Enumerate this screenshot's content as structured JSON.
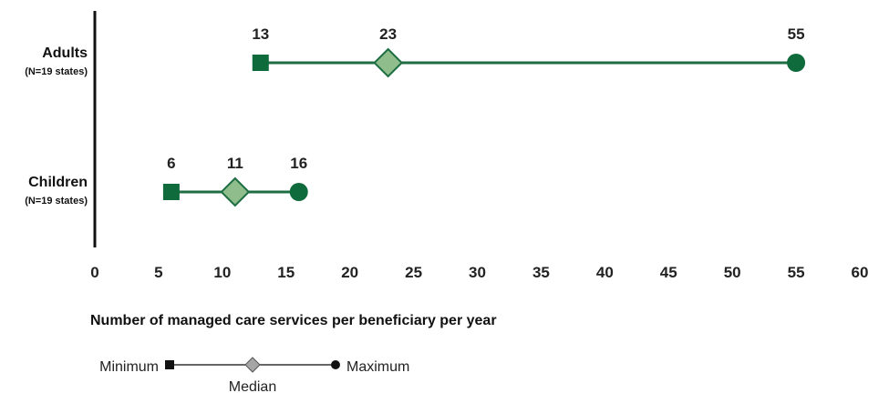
{
  "chart_data": {
    "type": "range",
    "xlabel": "Number of managed care services per beneficiary per year",
    "xlim": [
      0,
      60
    ],
    "xticks": [
      0,
      5,
      10,
      15,
      20,
      25,
      30,
      35,
      40,
      45,
      50,
      55,
      60
    ],
    "grid": false,
    "categories": [
      {
        "name": "Adults",
        "sublabel": "(N=19 states)",
        "min": 13,
        "median": 23,
        "max": 55,
        "min_label": "13",
        "median_label": "23",
        "max_label": "55"
      },
      {
        "name": "Children",
        "sublabel": "(N=19 states)",
        "min": 6,
        "median": 11,
        "max": 16,
        "min_label": "6",
        "median_label": "11",
        "max_label": "16"
      }
    ],
    "legend": {
      "placement": "bottom-left",
      "min_label": "Minimum",
      "median_label": "Median",
      "max_label": "Maximum"
    },
    "colors": {
      "line": "#1f6e43",
      "min_marker": "#0f6b3c",
      "max_marker": "#0f6b3c",
      "median_fill": "#8fbe8c",
      "median_stroke": "#1f6e43",
      "axis": "#111111",
      "legend_line": "#333333",
      "legend_median": "#a6a6a6"
    }
  }
}
